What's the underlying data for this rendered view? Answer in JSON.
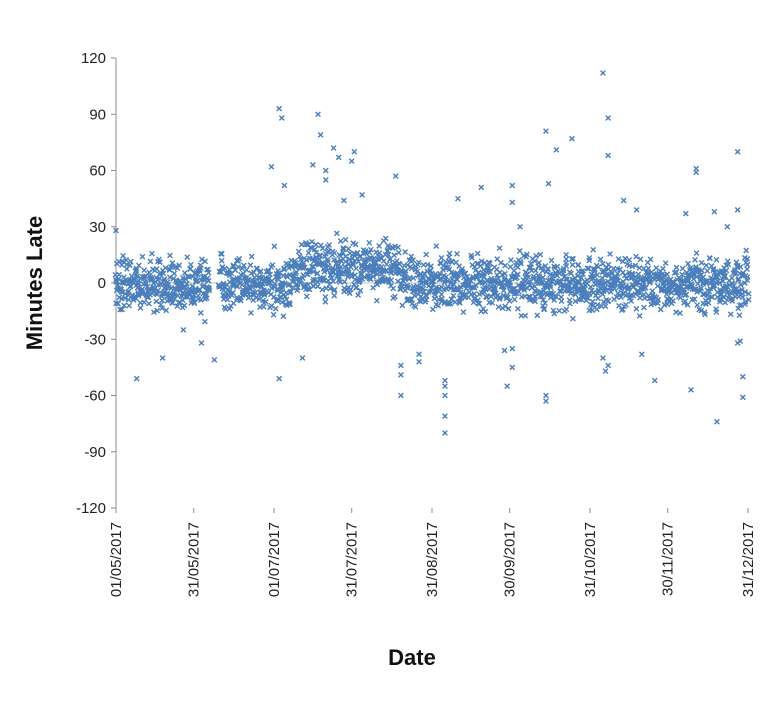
{
  "chart_data": {
    "type": "scatter",
    "title": "",
    "xlabel": "Date",
    "ylabel": "Minutes Late",
    "x_range": [
      "01/05/2017",
      "31/12/2017"
    ],
    "ylim": [
      -120,
      120
    ],
    "y_ticks": [
      120,
      90,
      60,
      30,
      0,
      -30,
      -60,
      -90,
      -120
    ],
    "y_tick_labels": [
      "120",
      "90",
      "60",
      "30",
      "0",
      "-30",
      "-60",
      "-90",
      "-120"
    ],
    "x_ticks": [
      {
        "label": "01/05/2017",
        "day": 0
      },
      {
        "label": "31/05/2017",
        "day": 30
      },
      {
        "label": "01/07/2017",
        "day": 61
      },
      {
        "label": "31/07/2017",
        "day": 91
      },
      {
        "label": "31/08/2017",
        "day": 122
      },
      {
        "label": "30/09/2017",
        "day": 152
      },
      {
        "label": "31/10/2017",
        "day": 183
      },
      {
        "label": "30/11/2017",
        "day": 213
      },
      {
        "label": "31/12/2017",
        "day": 244
      }
    ],
    "grid": false,
    "legend": "none",
    "marker": "x",
    "marker_color": "#4a7ebb",
    "bulk_band": {
      "center": 0,
      "spread": 12,
      "description": "dense cluster of daily arrivals between about -25 and +25 minutes"
    },
    "series": [
      {
        "name": "Minutes Late",
        "points": [
          {
            "day": 0,
            "value": 28
          },
          {
            "day": 8,
            "value": -51
          },
          {
            "day": 18,
            "value": -40
          },
          {
            "day": 26,
            "value": -25
          },
          {
            "day": 33,
            "value": -32
          },
          {
            "day": 38,
            "value": -41
          },
          {
            "day": 60,
            "value": 62
          },
          {
            "day": 63,
            "value": 93
          },
          {
            "day": 64,
            "value": 88
          },
          {
            "day": 65,
            "value": 52
          },
          {
            "day": 63,
            "value": -51
          },
          {
            "day": 72,
            "value": -40
          },
          {
            "day": 78,
            "value": 90
          },
          {
            "day": 79,
            "value": 79
          },
          {
            "day": 76,
            "value": 63
          },
          {
            "day": 81,
            "value": 60
          },
          {
            "day": 81,
            "value": 55
          },
          {
            "day": 84,
            "value": 72
          },
          {
            "day": 86,
            "value": 67
          },
          {
            "day": 92,
            "value": 70
          },
          {
            "day": 91,
            "value": 65
          },
          {
            "day": 88,
            "value": 44
          },
          {
            "day": 95,
            "value": 47
          },
          {
            "day": 108,
            "value": 57
          },
          {
            "day": 110,
            "value": -44
          },
          {
            "day": 110,
            "value": -49
          },
          {
            "day": 110,
            "value": -60
          },
          {
            "day": 117,
            "value": -38
          },
          {
            "day": 117,
            "value": -42
          },
          {
            "day": 127,
            "value": -52
          },
          {
            "day": 127,
            "value": -55
          },
          {
            "day": 127,
            "value": -60
          },
          {
            "day": 127,
            "value": -71
          },
          {
            "day": 127,
            "value": -80
          },
          {
            "day": 132,
            "value": 45
          },
          {
            "day": 141,
            "value": 51
          },
          {
            "day": 153,
            "value": 52
          },
          {
            "day": 153,
            "value": 43
          },
          {
            "day": 150,
            "value": -36
          },
          {
            "day": 153,
            "value": -35
          },
          {
            "day": 156,
            "value": 30
          },
          {
            "day": 153,
            "value": -45
          },
          {
            "day": 151,
            "value": -55
          },
          {
            "day": 166,
            "value": 81
          },
          {
            "day": 167,
            "value": 53
          },
          {
            "day": 170,
            "value": 71
          },
          {
            "day": 176,
            "value": 77
          },
          {
            "day": 166,
            "value": -60
          },
          {
            "day": 166,
            "value": -63
          },
          {
            "day": 188,
            "value": 112
          },
          {
            "day": 190,
            "value": 88
          },
          {
            "day": 190,
            "value": 68
          },
          {
            "day": 188,
            "value": -40
          },
          {
            "day": 190,
            "value": -44
          },
          {
            "day": 189,
            "value": -47
          },
          {
            "day": 196,
            "value": 44
          },
          {
            "day": 201,
            "value": 39
          },
          {
            "day": 203,
            "value": -38
          },
          {
            "day": 220,
            "value": 37
          },
          {
            "day": 224,
            "value": 61
          },
          {
            "day": 224,
            "value": 59
          },
          {
            "day": 231,
            "value": 38
          },
          {
            "day": 208,
            "value": -52
          },
          {
            "day": 222,
            "value": -57
          },
          {
            "day": 232,
            "value": -74
          },
          {
            "day": 240,
            "value": 70
          },
          {
            "day": 240,
            "value": 39
          },
          {
            "day": 242,
            "value": -50
          },
          {
            "day": 242,
            "value": -61
          },
          {
            "day": 240,
            "value": -32
          },
          {
            "day": 241,
            "value": -31
          },
          {
            "day": 236,
            "value": 30
          }
        ]
      }
    ]
  }
}
